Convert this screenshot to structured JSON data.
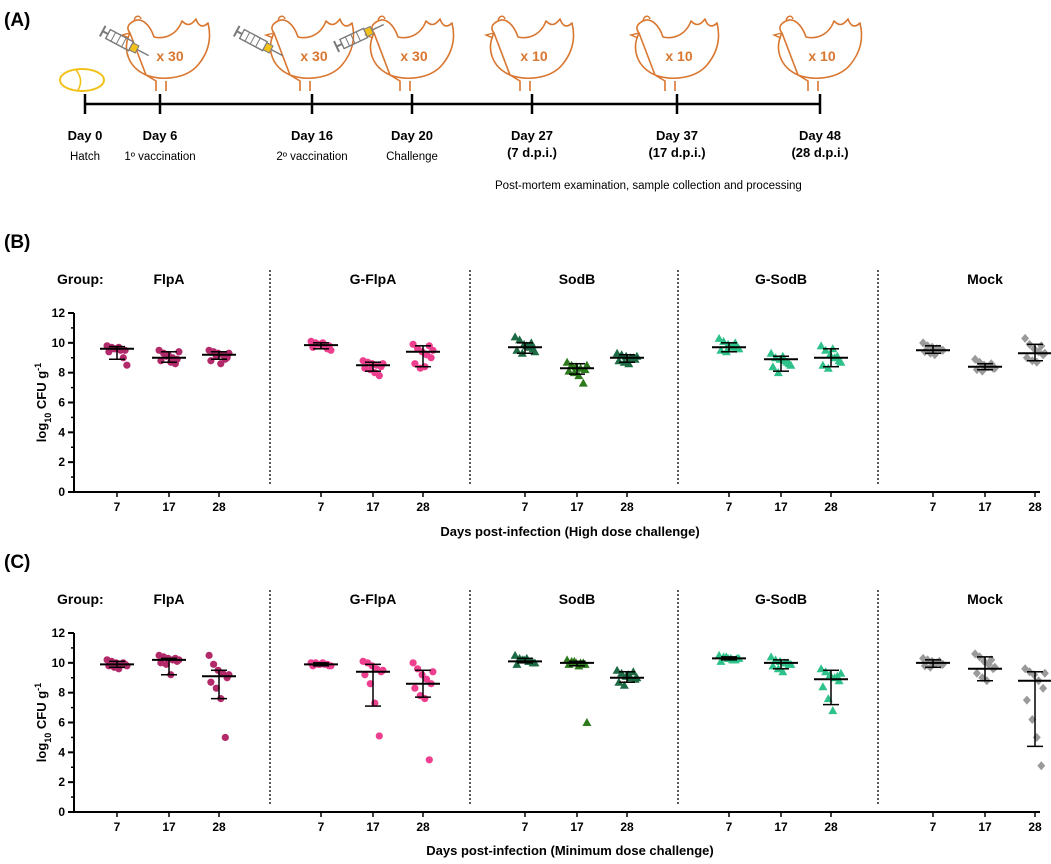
{
  "panelA": {
    "letter": "(A)",
    "events": [
      {
        "day": "Day 0",
        "dpi": "",
        "desc": "Hatch",
        "count": "",
        "syringe": false,
        "egg": true
      },
      {
        "day": "Day 6",
        "dpi": "",
        "desc": "1º vaccination",
        "count": "x 30",
        "syringe": true
      },
      {
        "day": "Day 16",
        "dpi": "",
        "desc": "2º vaccination",
        "count": "x 30",
        "syringe": true
      },
      {
        "day": "Day 20",
        "dpi": "",
        "desc": "Challenge",
        "count": "x 30",
        "syringe": true
      },
      {
        "day": "Day 27",
        "dpi": "(7 d.p.i.)",
        "desc": "",
        "count": "x 10",
        "syringe": false
      },
      {
        "day": "Day 37",
        "dpi": "(17 d.p.i.)",
        "desc": "",
        "count": "x 10",
        "syringe": false
      },
      {
        "day": "Day 48",
        "dpi": "(28 d.p.i.)",
        "desc": "",
        "count": "x 10",
        "syringe": false
      }
    ],
    "footnote": "Post-mortem examination, sample collection and processing"
  },
  "colors": {
    "FlpA": "#b22a6a",
    "G-FlpA": "#ee3f8f",
    "SodB": "#1d6b45",
    "G-SodB": "#2ec28a",
    "Mock": "#9a9a9a",
    "SodB17": "#2c7a1c",
    "chicken": "#d9762f",
    "egg": "#f2c21a"
  },
  "chart_data": [
    {
      "type": "scatter",
      "panel": "(B)",
      "group_prefix": "Group:",
      "xlabel": "Days post-infection (High dose challenge)",
      "ylabel_main": "log",
      "ylabel_sub": "10",
      "ylabel_rest": " CFU g",
      "ylabel_sup": "-1",
      "ylim": [
        0,
        12
      ],
      "yticks": [
        "0",
        "2",
        "4",
        "6",
        "8",
        "10",
        "12"
      ],
      "categories": [
        "7",
        "17",
        "28"
      ],
      "groups": [
        {
          "name": "FlpA",
          "marker": "circle",
          "series": [
            {
              "values": [
                9.8,
                9.7,
                9.6,
                9.5,
                9.5,
                9.4,
                9.6,
                9.7,
                9.0,
                8.5
              ],
              "median": 9.6,
              "iqr": [
                8.9,
                9.75
              ]
            },
            {
              "values": [
                9.5,
                9.3,
                9.2,
                9.0,
                8.9,
                8.8,
                9.1,
                8.7,
                8.6,
                9.4
              ],
              "median": 9.0,
              "iqr": [
                8.7,
                9.4
              ]
            },
            {
              "values": [
                9.5,
                9.4,
                9.3,
                9.2,
                9.0,
                8.8,
                9.1,
                8.6,
                8.9,
                9.3
              ],
              "median": 9.2,
              "iqr": [
                8.9,
                9.4
              ]
            }
          ]
        },
        {
          "name": "G-FlpA",
          "marker": "circle",
          "series": [
            {
              "values": [
                10.1,
                10.0,
                9.9,
                9.8,
                9.8,
                9.7,
                9.9,
                10.0,
                9.6,
                9.5
              ],
              "median": 9.85,
              "iqr": [
                9.6,
                10.0
              ]
            },
            {
              "values": [
                8.8,
                8.7,
                8.6,
                8.5,
                8.4,
                8.3,
                8.2,
                8.0,
                7.8,
                8.6
              ],
              "median": 8.5,
              "iqr": [
                8.1,
                8.7
              ]
            },
            {
              "values": [
                9.9,
                9.6,
                9.4,
                9.2,
                9.0,
                8.6,
                8.3,
                8.4,
                9.8,
                9.5
              ],
              "median": 9.4,
              "iqr": [
                8.4,
                9.8
              ]
            }
          ]
        },
        {
          "name": "SodB",
          "marker": "triangle",
          "series": [
            {
              "values": [
                10.4,
                10.2,
                9.9,
                9.7,
                9.6,
                9.5,
                9.3,
                9.8,
                10.0,
                9.4
              ],
              "median": 9.7,
              "iqr": [
                9.3,
                10.0
              ]
            },
            {
              "values": [
                8.7,
                8.5,
                8.4,
                8.3,
                8.2,
                8.1,
                8.0,
                7.8,
                7.3,
                8.5
              ],
              "median": 8.3,
              "iqr": [
                7.9,
                8.6
              ]
            },
            {
              "values": [
                9.3,
                9.2,
                9.1,
                9.0,
                8.9,
                8.8,
                8.7,
                8.6,
                9.0,
                9.1
              ],
              "median": 9.0,
              "iqr": [
                8.7,
                9.2
              ]
            }
          ]
        },
        {
          "name": "G-SodB",
          "marker": "triangle",
          "series": [
            {
              "values": [
                10.3,
                10.1,
                9.9,
                9.8,
                9.6,
                9.5,
                9.4,
                9.7,
                10.0,
                9.6
              ],
              "median": 9.7,
              "iqr": [
                9.4,
                10.0
              ]
            },
            {
              "values": [
                9.3,
                9.0,
                8.9,
                8.8,
                8.6,
                8.4,
                8.0,
                9.1,
                8.7,
                8.5
              ],
              "median": 8.9,
              "iqr": [
                8.1,
                9.1
              ]
            },
            {
              "values": [
                9.8,
                9.5,
                9.2,
                9.0,
                8.8,
                8.5,
                8.3,
                9.6,
                9.1,
                8.7
              ],
              "median": 9.0,
              "iqr": [
                8.4,
                9.6
              ]
            }
          ]
        },
        {
          "name": "Mock",
          "marker": "diamond",
          "series": [
            {
              "values": [
                10.0,
                9.8,
                9.7,
                9.6,
                9.5,
                9.4,
                9.3,
                9.2,
                9.6,
                9.5
              ],
              "median": 9.5,
              "iqr": [
                9.3,
                9.8
              ]
            },
            {
              "values": [
                8.9,
                8.7,
                8.5,
                8.4,
                8.3,
                8.2,
                8.1,
                8.4,
                8.6,
                8.3
              ],
              "median": 8.4,
              "iqr": [
                8.2,
                8.6
              ]
            },
            {
              "values": [
                10.3,
                9.9,
                9.6,
                9.4,
                9.2,
                9.0,
                8.8,
                8.7,
                9.8,
                9.3
              ],
              "median": 9.3,
              "iqr": [
                8.8,
                9.9
              ]
            }
          ]
        }
      ]
    },
    {
      "type": "scatter",
      "panel": "(C)",
      "group_prefix": "Group:",
      "xlabel": "Days post-infection (Minimum dose challenge)",
      "ylabel_main": "log",
      "ylabel_sub": "10",
      "ylabel_rest": " CFU g",
      "ylabel_sup": "-1",
      "ylim": [
        0,
        12
      ],
      "yticks": [
        "0",
        "2",
        "4",
        "6",
        "8",
        "10",
        "12"
      ],
      "categories": [
        "7",
        "17",
        "28"
      ],
      "groups": [
        {
          "name": "FlpA",
          "marker": "circle",
          "series": [
            {
              "values": [
                10.2,
                10.1,
                10.0,
                9.9,
                9.9,
                9.8,
                9.7,
                9.6,
                10.0,
                9.8
              ],
              "median": 9.9,
              "iqr": [
                9.7,
                10.1
              ]
            },
            {
              "values": [
                10.5,
                10.4,
                10.3,
                10.2,
                10.1,
                10.0,
                9.9,
                9.2,
                10.3,
                10.2
              ],
              "median": 10.2,
              "iqr": [
                9.2,
                10.3
              ]
            },
            {
              "values": [
                10.5,
                9.9,
                9.5,
                9.3,
                9.0,
                8.7,
                8.3,
                7.6,
                5.0,
                9.2
              ],
              "median": 9.1,
              "iqr": [
                7.6,
                9.5
              ]
            }
          ]
        },
        {
          "name": "G-FlpA",
          "marker": "circle",
          "series": [
            {
              "values": [
                10.0,
                10.0,
                9.9,
                9.9,
                9.8,
                9.8,
                9.9,
                10.0,
                9.9,
                9.8
              ],
              "median": 9.9,
              "iqr": [
                9.8,
                10.0
              ]
            },
            {
              "values": [
                10.1,
                10.0,
                9.8,
                9.6,
                9.4,
                9.2,
                8.6,
                7.3,
                5.1,
                9.5
              ],
              "median": 9.4,
              "iqr": [
                7.1,
                9.9
              ]
            },
            {
              "values": [
                10.0,
                9.6,
                9.2,
                8.9,
                8.6,
                8.3,
                7.8,
                7.6,
                3.5,
                9.4
              ],
              "median": 8.6,
              "iqr": [
                7.7,
                9.5
              ]
            }
          ]
        },
        {
          "name": "SodB",
          "marker": "triangle",
          "series": [
            {
              "values": [
                10.5,
                10.3,
                10.2,
                10.1,
                10.0,
                9.9,
                10.2,
                10.3,
                10.1,
                10.0
              ],
              "median": 10.1,
              "iqr": [
                10.0,
                10.3
              ]
            },
            {
              "values": [
                10.2,
                10.1,
                10.0,
                10.0,
                9.9,
                9.9,
                10.1,
                9.8,
                10.0,
                6.0
              ],
              "median": 10.0,
              "iqr": [
                9.8,
                10.1
              ]
            },
            {
              "values": [
                9.5,
                9.3,
                9.1,
                9.0,
                8.9,
                8.7,
                8.5,
                9.2,
                9.4,
                9.0
              ],
              "median": 9.0,
              "iqr": [
                8.7,
                9.4
              ]
            }
          ]
        },
        {
          "name": "G-SodB",
          "marker": "triangle",
          "series": [
            {
              "values": [
                10.5,
                10.4,
                10.3,
                10.2,
                10.3,
                10.1,
                10.4,
                10.3,
                10.2,
                10.3
              ],
              "median": 10.3,
              "iqr": [
                10.2,
                10.4
              ]
            },
            {
              "values": [
                10.4,
                10.2,
                10.1,
                10.0,
                9.9,
                9.8,
                9.6,
                9.4,
                10.0,
                9.9
              ],
              "median": 10.0,
              "iqr": [
                9.6,
                10.2
              ]
            },
            {
              "values": [
                9.6,
                9.4,
                9.2,
                9.0,
                8.8,
                8.4,
                7.6,
                6.8,
                9.1,
                9.3
              ],
              "median": 8.9,
              "iqr": [
                7.2,
                9.5
              ]
            }
          ]
        },
        {
          "name": "Mock",
          "marker": "diamond",
          "series": [
            {
              "values": [
                10.3,
                10.2,
                10.1,
                10.0,
                9.9,
                9.8,
                9.7,
                10.0,
                10.1,
                9.9
              ],
              "median": 10.0,
              "iqr": [
                9.7,
                10.2
              ]
            },
            {
              "values": [
                10.6,
                10.4,
                10.1,
                9.9,
                9.6,
                9.3,
                9.0,
                8.8,
                10.2,
                9.7
              ],
              "median": 9.6,
              "iqr": [
                8.8,
                10.4
              ]
            },
            {
              "values": [
                9.6,
                9.4,
                9.2,
                8.8,
                8.3,
                7.5,
                6.2,
                5.0,
                3.1,
                9.3
              ],
              "median": 8.8,
              "iqr": [
                4.4,
                9.4
              ]
            }
          ]
        }
      ]
    }
  ]
}
